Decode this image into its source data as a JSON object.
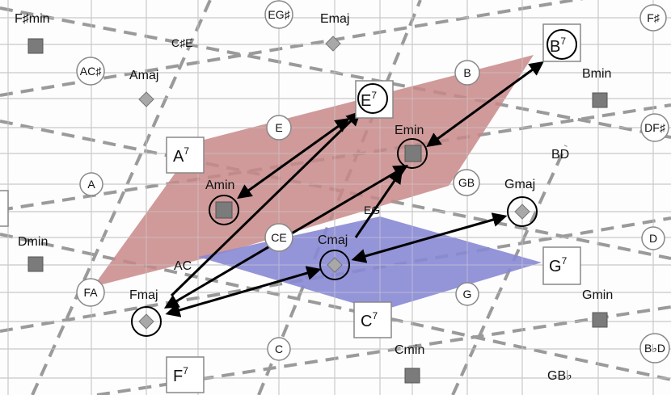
{
  "colors": {
    "grid": "#b8b8b8",
    "dash": "#9a9a9a",
    "red_region": "#c98a8a",
    "blue_region": "#8a8ad6",
    "arrow": "#000000",
    "square": "#7d7d7d",
    "diamond": "#a9a9a9"
  },
  "icons": {
    "triad_square": "square-icon",
    "triad_diamond": "diamond-icon",
    "note_circle": "circle-icon",
    "seventh_box": "square-outline-icon"
  },
  "notes": {
    "fsharp_top": "F♯",
    "eg_sharp": "EG♯",
    "ac_sharp": "AC♯",
    "b_top": "B",
    "df_sharp": "DF♯",
    "e": "E",
    "a": "A",
    "gb": "GB",
    "ce": "CE",
    "d": "D",
    "fa": "FA",
    "g": "G",
    "c": "C",
    "bbd": "B♭D"
  },
  "chords": {
    "fsharp_min": "F♯min",
    "emaj": "Emaj",
    "amaj": "Amaj",
    "bmin": "Bmin",
    "emin": "Emin",
    "amin": "Amin",
    "gmaj": "Gmaj",
    "dmin": "Dmin",
    "cmaj": "Cmaj",
    "fmaj": "Fmaj",
    "gmin": "Gmin",
    "cmin": "Cmin"
  },
  "sevenths": {
    "b7": "B",
    "e7": "E",
    "a7": "A",
    "g7": "G",
    "c7": "C",
    "f7": "F",
    "sup": "7"
  },
  "dyads": {
    "csharp_e": "C♯E",
    "bd": "BD",
    "eg": "EG",
    "ac": "AC",
    "gbflat": "GB♭"
  }
}
